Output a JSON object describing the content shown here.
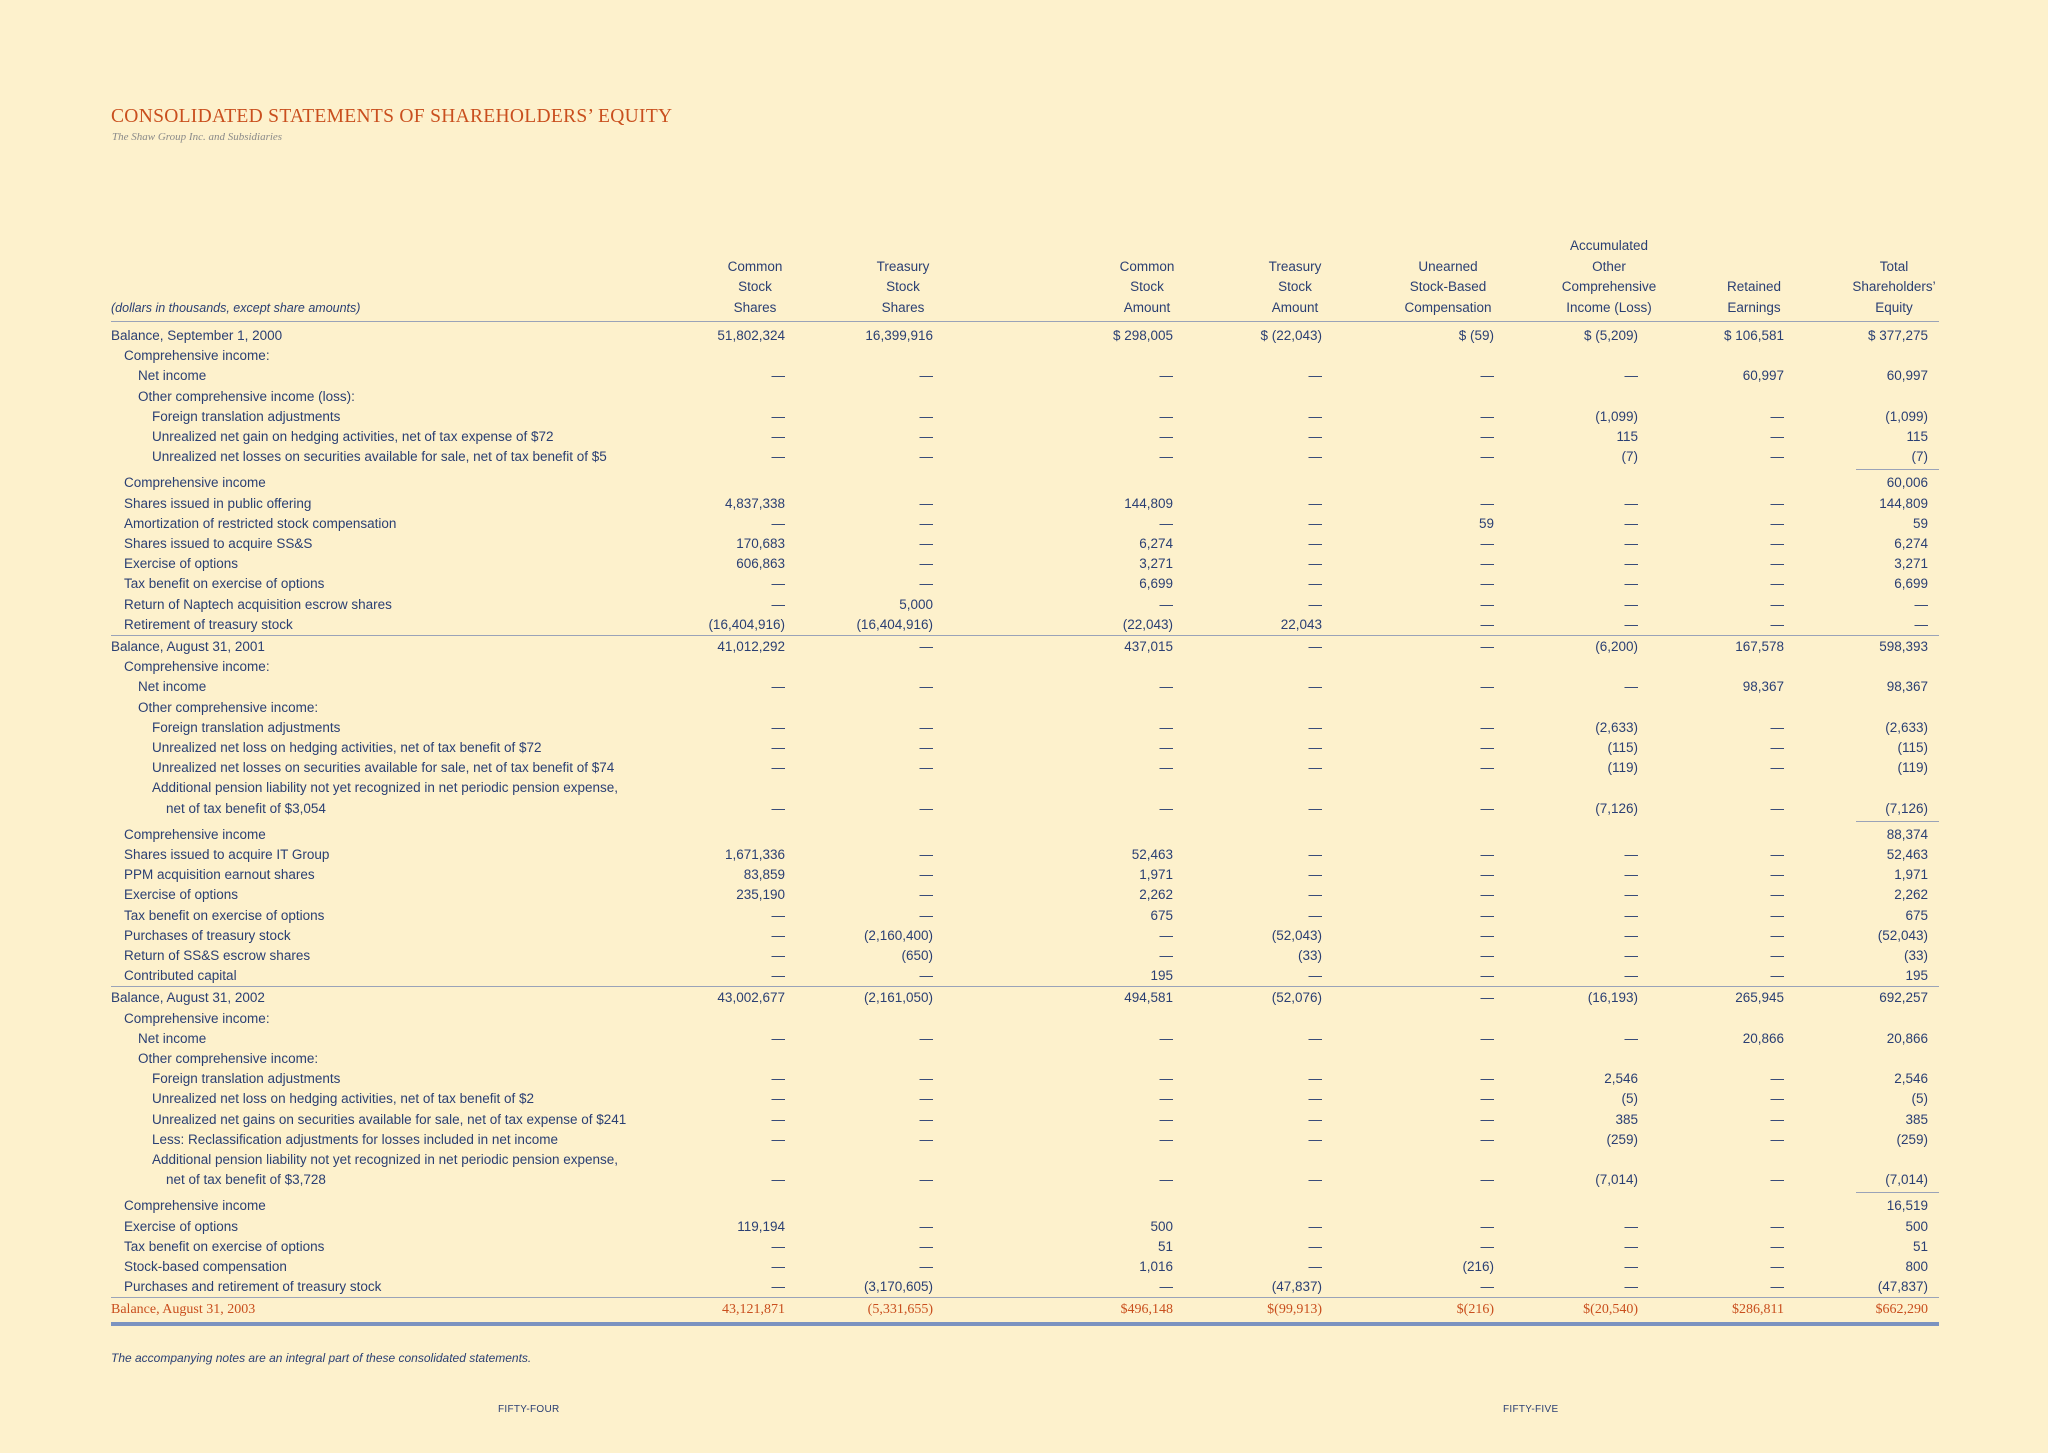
{
  "title": "CONSOLIDATED STATEMENTS OF SHAREHOLDERS’ EQUITY",
  "subtitle": "The Shaw Group Inc. and Subsidiaries",
  "units_note": "(dollars in thousands, except share amounts)",
  "columns": [
    [
      "Common",
      "Stock",
      "Shares"
    ],
    [
      "Treasury",
      "Stock",
      "Shares"
    ],
    [
      "Common",
      "Stock",
      "Amount"
    ],
    [
      "Treasury",
      "Stock",
      "Amount"
    ],
    [
      "Unearned",
      "Stock-Based",
      "Compensation"
    ],
    [
      "Accumulated",
      "Other",
      "Comprehensive",
      "Income (Loss)"
    ],
    [
      "Retained",
      "Earnings"
    ],
    [
      "Total",
      "Shareholders’",
      "Equity"
    ]
  ],
  "rows": [
    {
      "label": "Balance, September 1, 2000",
      "indent": 0,
      "values": [
        "51,802,324",
        "16,399,916",
        "$ 298,005",
        "$ (22,043)",
        "$ (59)",
        "$ (5,209)",
        "$ 106,581",
        "$ 377,275"
      ]
    },
    {
      "label": "Comprehensive income:",
      "indent": 1,
      "values": []
    },
    {
      "label": "Net income",
      "indent": 2,
      "values": [
        "—",
        "—",
        "—",
        "—",
        "—",
        "—",
        "60,997",
        "60,997"
      ]
    },
    {
      "label": "Other comprehensive income (loss):",
      "indent": 2,
      "values": []
    },
    {
      "label": "Foreign translation adjustments",
      "indent": 3,
      "values": [
        "—",
        "—",
        "—",
        "—",
        "—",
        "(1,099)",
        "—",
        "(1,099)"
      ]
    },
    {
      "label": "Unrealized net gain on hedging activities, net of tax expense of $72",
      "indent": 3,
      "values": [
        "—",
        "—",
        "—",
        "—",
        "—",
        "115",
        "—",
        "115"
      ]
    },
    {
      "label": "Unrealized net losses on securities available for sale, net of tax benefit of $5",
      "indent": 3,
      "values": [
        "—",
        "—",
        "—",
        "—",
        "—",
        "(7)",
        "—",
        "(7)"
      ]
    },
    {
      "label": "Comprehensive income",
      "indent": 1,
      "values": [
        "",
        "",
        "",
        "",
        "",
        "",
        "",
        "60,006"
      ]
    },
    {
      "label": "Shares issued in public offering",
      "indent": 1,
      "values": [
        "4,837,338",
        "—",
        "144,809",
        "—",
        "—",
        "—",
        "—",
        "144,809"
      ]
    },
    {
      "label": "Amortization of restricted stock compensation",
      "indent": 1,
      "values": [
        "—",
        "—",
        "—",
        "—",
        "59",
        "—",
        "—",
        "59"
      ]
    },
    {
      "label": "Shares issued to acquire SS&S",
      "indent": 1,
      "values": [
        "170,683",
        "—",
        "6,274",
        "—",
        "—",
        "—",
        "—",
        "6,274"
      ]
    },
    {
      "label": "Exercise of options",
      "indent": 1,
      "values": [
        "606,863",
        "—",
        "3,271",
        "—",
        "—",
        "—",
        "—",
        "3,271"
      ]
    },
    {
      "label": "Tax benefit on exercise of options",
      "indent": 1,
      "values": [
        "—",
        "—",
        "6,699",
        "—",
        "—",
        "—",
        "—",
        "6,699"
      ]
    },
    {
      "label": "Return of Naptech acquisition escrow shares",
      "indent": 1,
      "values": [
        "—",
        "5,000",
        "—",
        "—",
        "—",
        "—",
        "—",
        "—"
      ]
    },
    {
      "label": "Retirement of treasury stock",
      "indent": 1,
      "values": [
        "(16,404,916)",
        "(16,404,916)",
        "(22,043)",
        "22,043",
        "—",
        "—",
        "—",
        "—"
      ]
    },
    {
      "label": "Balance, August 31, 2001",
      "indent": 0,
      "values": [
        "41,012,292",
        "—",
        "437,015",
        "—",
        "—",
        "(6,200)",
        "167,578",
        "598,393"
      ]
    },
    {
      "label": "Comprehensive income:",
      "indent": 1,
      "values": []
    },
    {
      "label": "Net income",
      "indent": 2,
      "values": [
        "—",
        "—",
        "—",
        "—",
        "—",
        "—",
        "98,367",
        "98,367"
      ]
    },
    {
      "label": "Other comprehensive income:",
      "indent": 2,
      "values": []
    },
    {
      "label": "Foreign translation adjustments",
      "indent": 3,
      "values": [
        "—",
        "—",
        "—",
        "—",
        "—",
        "(2,633)",
        "—",
        "(2,633)"
      ]
    },
    {
      "label": "Unrealized net loss on hedging activities, net of tax benefit of $72",
      "indent": 3,
      "values": [
        "—",
        "—",
        "—",
        "—",
        "—",
        "(115)",
        "—",
        "(115)"
      ]
    },
    {
      "label": "Unrealized net losses on securities available for sale, net of tax benefit of $74",
      "indent": 3,
      "values": [
        "—",
        "—",
        "—",
        "—",
        "—",
        "(119)",
        "—",
        "(119)"
      ]
    },
    {
      "label": "Additional pension liability not yet recognized in net periodic pension expense,",
      "indent": 3,
      "values": []
    },
    {
      "label": "net of tax benefit of $3,054",
      "indent": 4,
      "values": [
        "—",
        "—",
        "—",
        "—",
        "—",
        "(7,126)",
        "—",
        "(7,126)"
      ]
    },
    {
      "label": "Comprehensive income",
      "indent": 1,
      "values": [
        "",
        "",
        "",
        "",
        "",
        "",
        "",
        "88,374"
      ]
    },
    {
      "label": "Shares issued to acquire IT Group",
      "indent": 1,
      "values": [
        "1,671,336",
        "—",
        "52,463",
        "—",
        "—",
        "—",
        "—",
        "52,463"
      ]
    },
    {
      "label": "PPM acquisition earnout shares",
      "indent": 1,
      "values": [
        "83,859",
        "—",
        "1,971",
        "—",
        "—",
        "—",
        "—",
        "1,971"
      ]
    },
    {
      "label": "Exercise of options",
      "indent": 1,
      "values": [
        "235,190",
        "—",
        "2,262",
        "—",
        "—",
        "—",
        "—",
        "2,262"
      ]
    },
    {
      "label": "Tax benefit on exercise of options",
      "indent": 1,
      "values": [
        "—",
        "—",
        "675",
        "—",
        "—",
        "—",
        "—",
        "675"
      ]
    },
    {
      "label": "Purchases of treasury stock",
      "indent": 1,
      "values": [
        "—",
        "(2,160,400)",
        "—",
        "(52,043)",
        "—",
        "—",
        "—",
        "(52,043)"
      ]
    },
    {
      "label": "Return of SS&S escrow shares",
      "indent": 1,
      "values": [
        "—",
        "(650)",
        "—",
        "(33)",
        "—",
        "—",
        "—",
        "(33)"
      ]
    },
    {
      "label": "Contributed capital",
      "indent": 1,
      "values": [
        "—",
        "—",
        "195",
        "—",
        "—",
        "—",
        "—",
        "195"
      ]
    },
    {
      "label": "Balance, August 31, 2002",
      "indent": 0,
      "values": [
        "43,002,677",
        "(2,161,050)",
        "494,581",
        "(52,076)",
        "—",
        "(16,193)",
        "265,945",
        "692,257"
      ]
    },
    {
      "label": "Comprehensive income:",
      "indent": 1,
      "values": []
    },
    {
      "label": "Net income",
      "indent": 2,
      "values": [
        "—",
        "—",
        "—",
        "—",
        "—",
        "—",
        "20,866",
        "20,866"
      ]
    },
    {
      "label": "Other comprehensive income:",
      "indent": 2,
      "values": []
    },
    {
      "label": "Foreign translation adjustments",
      "indent": 3,
      "values": [
        "—",
        "—",
        "—",
        "—",
        "—",
        "2,546",
        "—",
        "2,546"
      ]
    },
    {
      "label": "Unrealized net loss on hedging activities, net of tax benefit of $2",
      "indent": 3,
      "values": [
        "—",
        "—",
        "—",
        "—",
        "—",
        "(5)",
        "—",
        "(5)"
      ]
    },
    {
      "label": "Unrealized net gains on securities available for sale, net of tax expense of $241",
      "indent": 3,
      "values": [
        "—",
        "—",
        "—",
        "—",
        "—",
        "385",
        "—",
        "385"
      ]
    },
    {
      "label": "Less: Reclassification adjustments for losses included in net income",
      "indent": 3,
      "values": [
        "—",
        "—",
        "—",
        "—",
        "—",
        "(259)",
        "—",
        "(259)"
      ]
    },
    {
      "label": "Additional pension liability not yet recognized in net periodic pension expense,",
      "indent": 3,
      "values": []
    },
    {
      "label": "net of tax benefit of $3,728",
      "indent": 4,
      "values": [
        "—",
        "—",
        "—",
        "—",
        "—",
        "(7,014)",
        "—",
        "(7,014)"
      ]
    },
    {
      "label": "Comprehensive income",
      "indent": 1,
      "values": [
        "",
        "",
        "",
        "",
        "",
        "",
        "",
        "16,519"
      ]
    },
    {
      "label": "Exercise of options",
      "indent": 1,
      "values": [
        "119,194",
        "—",
        "500",
        "—",
        "—",
        "—",
        "—",
        "500"
      ]
    },
    {
      "label": "Tax benefit on exercise of options",
      "indent": 1,
      "values": [
        "—",
        "—",
        "51",
        "—",
        "—",
        "—",
        "—",
        "51"
      ]
    },
    {
      "label": "Stock-based compensation",
      "indent": 1,
      "values": [
        "—",
        "—",
        "1,016",
        "—",
        "(216)",
        "—",
        "—",
        "800"
      ]
    },
    {
      "label": "Purchases and retirement of treasury stock",
      "indent": 1,
      "values": [
        "—",
        "(3,170,605)",
        "—",
        "(47,837)",
        "—",
        "—",
        "—",
        "(47,837)"
      ]
    },
    {
      "label": "Balance, August 31, 2003",
      "indent": 0,
      "final": true,
      "values": [
        "43,121,871",
        "(5,331,655)",
        "$496,148",
        "$(99,913)",
        "$(216)",
        "$(20,540)",
        "$286,811",
        "$662,290"
      ]
    }
  ],
  "footnote": "The accompanying notes are an integral part of these consolidated statements.",
  "page_left": "FIFTY-FOUR",
  "page_right": "FIFTY-FIVE",
  "colors": {
    "background": "#fdf1cc",
    "text": "#2a3f73",
    "accent": "#c94f1e",
    "rule": "#9aa3b8",
    "thick_rule": "#7b93c0"
  }
}
